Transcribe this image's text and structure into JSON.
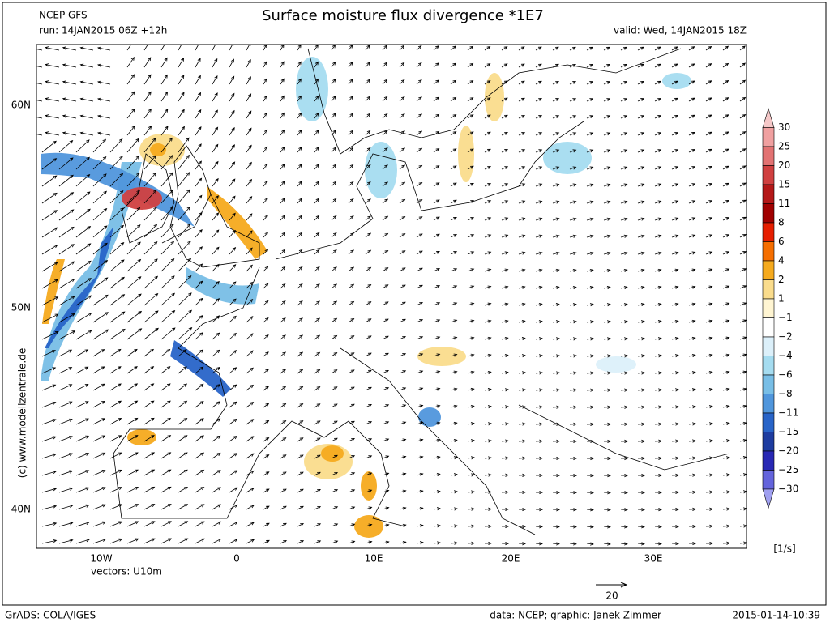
{
  "header": {
    "model": "NCEP GFS",
    "run": "run: 14JAN2015 06Z +12h",
    "title": "Surface moisture flux divergence *1E7",
    "valid": "valid: Wed, 14JAN2015 18Z"
  },
  "map": {
    "lat_labels": [
      "60N",
      "50N",
      "40N"
    ],
    "lon_labels": [
      "10W",
      "0",
      "10E",
      "20E",
      "30E"
    ],
    "credit": "(c) www.modellzentrale.de",
    "vectors": "vectors: U10m",
    "reference_vector": "20"
  },
  "legend": {
    "labels": [
      "30",
      "25",
      "20",
      "15",
      "11",
      "8",
      "6",
      "4",
      "2",
      "1",
      "−1",
      "−2",
      "−4",
      "−6",
      "−8",
      "−11",
      "−15",
      "−20",
      "−25",
      "−30"
    ],
    "colors": [
      "#f5c8c8",
      "#f0a0a0",
      "#e27272",
      "#d04040",
      "#b41818",
      "#a00000",
      "#e61e00",
      "#f56e00",
      "#f5aa1e",
      "#fadc8c",
      "#fff5d2",
      "#ffffff",
      "#dcf0fa",
      "#a5dcf0",
      "#78bee6",
      "#5096dc",
      "#2864c8",
      "#1e3ca0",
      "#2828b4",
      "#6464dc",
      "#a0a0f0"
    ],
    "unit": "[1/s]"
  },
  "footer": {
    "software": "GrADS: COLA/IGES",
    "source": "data: NCEP; graphic: Janek Zimmer",
    "timestamp": "2015-01-14-10:39"
  }
}
